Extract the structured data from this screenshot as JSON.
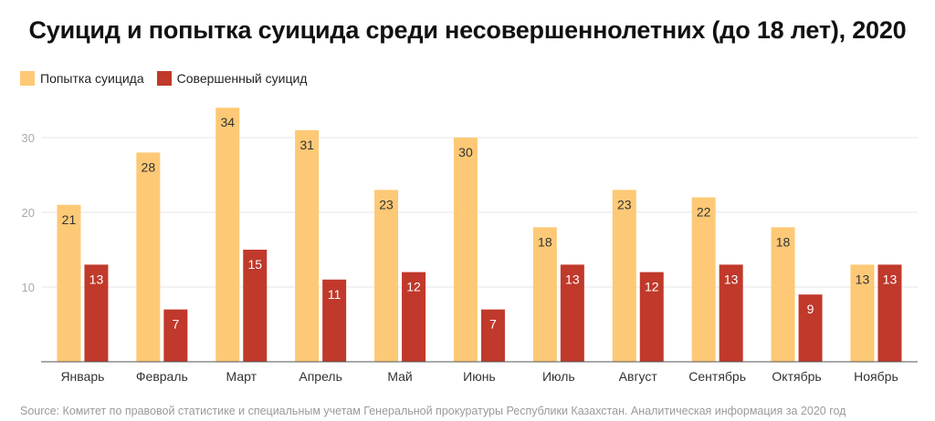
{
  "title": "Суицид и попытка суицида среди несовершеннолетних (до 18 лет), 2020",
  "source": "Source: Комитет по правовой статистике и специальным учетам Генеральной прокуратуры Республики Казахстан. Аналитическая информация за 2020 год",
  "chart_data": {
    "type": "bar",
    "title": "Суицид и попытка суицида среди несовершеннолетних (до 18 лет), 2020",
    "categories": [
      "Январь",
      "Февраль",
      "Март",
      "Апрель",
      "Май",
      "Июнь",
      "Июль",
      "Август",
      "Сентябрь",
      "Октябрь",
      "Ноябрь"
    ],
    "series": [
      {
        "name": "Попытка суицида",
        "color": "#fdc976",
        "label_color": "#333333",
        "values": [
          21,
          28,
          34,
          31,
          23,
          30,
          18,
          23,
          22,
          18,
          13
        ]
      },
      {
        "name": "Совершенный суицид",
        "color": "#c0392b",
        "label_color": "#ffffff",
        "values": [
          13,
          7,
          15,
          11,
          12,
          7,
          13,
          12,
          13,
          9,
          13
        ]
      }
    ],
    "yticks": [
      10,
      20,
      30
    ],
    "ylim": [
      0,
      34
    ],
    "grid": true,
    "legend": "top-left"
  }
}
